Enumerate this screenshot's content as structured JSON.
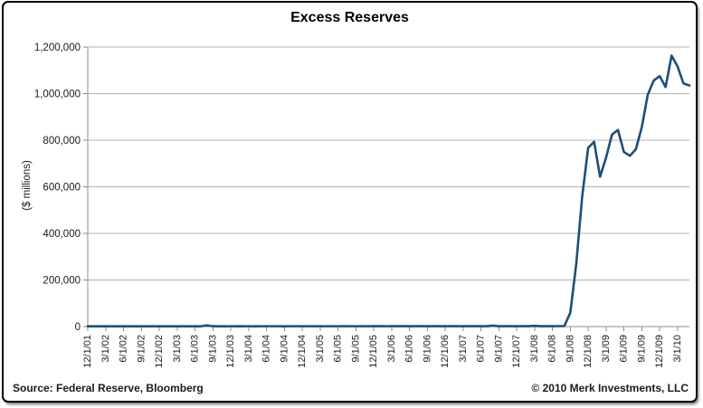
{
  "figure": {
    "title": "Excess Reserves"
  },
  "footer": {
    "source": "Source: Federal Reserve, Bloomberg",
    "copyright": "© 2010 Merk Investments, LLC"
  },
  "colors": {
    "line": "#1f4e79",
    "grid": "#b3b3b3",
    "axis": "#8c8c8c",
    "text": "#1a1a1a"
  },
  "chart_data": {
    "type": "line",
    "title": "Excess Reserves",
    "xlabel": "",
    "ylabel": "($ millions)",
    "ylim": [
      0,
      1200000
    ],
    "ytick_step": 200000,
    "y_tick_labels": [
      "0",
      "200,000",
      "400,000",
      "600,000",
      "800,000",
      "1,000,000",
      "1,200,000"
    ],
    "grid": true,
    "legend_position": "none",
    "x_tick_every_months": 3,
    "x_tick_labels": [
      "12/1/01",
      "3/1/02",
      "6/1/02",
      "9/1/02",
      "12/1/02",
      "3/1/03",
      "6/1/03",
      "9/1/03",
      "12/1/03",
      "3/1/04",
      "6/1/04",
      "9/1/04",
      "12/1/04",
      "3/1/05",
      "6/1/05",
      "9/1/05",
      "12/1/05",
      "3/1/06",
      "6/1/06",
      "9/1/06",
      "12/1/06",
      "3/1/07",
      "6/1/07",
      "9/1/07",
      "12/1/07",
      "3/1/08",
      "6/1/08",
      "9/1/08",
      "12/1/08",
      "3/1/09",
      "6/1/09",
      "9/1/09",
      "12/1/09",
      "3/1/10"
    ],
    "series": [
      {
        "name": "Excess Reserves",
        "x": [
          "12/1/01",
          "1/1/02",
          "2/1/02",
          "3/1/02",
          "4/1/02",
          "5/1/02",
          "6/1/02",
          "7/1/02",
          "8/1/02",
          "9/1/02",
          "10/1/02",
          "11/1/02",
          "12/1/02",
          "1/1/03",
          "2/1/03",
          "3/1/03",
          "4/1/03",
          "5/1/03",
          "6/1/03",
          "7/1/03",
          "8/1/03",
          "9/1/03",
          "10/1/03",
          "11/1/03",
          "12/1/03",
          "1/1/04",
          "2/1/04",
          "3/1/04",
          "4/1/04",
          "5/1/04",
          "6/1/04",
          "7/1/04",
          "8/1/04",
          "9/1/04",
          "10/1/04",
          "11/1/04",
          "12/1/04",
          "1/1/05",
          "2/1/05",
          "3/1/05",
          "4/1/05",
          "5/1/05",
          "6/1/05",
          "7/1/05",
          "8/1/05",
          "9/1/05",
          "10/1/05",
          "11/1/05",
          "12/1/05",
          "1/1/06",
          "2/1/06",
          "3/1/06",
          "4/1/06",
          "5/1/06",
          "6/1/06",
          "7/1/06",
          "8/1/06",
          "9/1/06",
          "10/1/06",
          "11/1/06",
          "12/1/06",
          "1/1/07",
          "2/1/07",
          "3/1/07",
          "4/1/07",
          "5/1/07",
          "6/1/07",
          "7/1/07",
          "8/1/07",
          "9/1/07",
          "10/1/07",
          "11/1/07",
          "12/1/07",
          "1/1/08",
          "2/1/08",
          "3/1/08",
          "4/1/08",
          "5/1/08",
          "6/1/08",
          "7/1/08",
          "8/1/08",
          "9/1/08",
          "10/1/08",
          "11/1/08",
          "12/1/08",
          "1/1/09",
          "2/1/09",
          "3/1/09",
          "4/1/09",
          "5/1/09",
          "6/1/09",
          "7/1/09",
          "8/1/09",
          "9/1/09",
          "10/1/09",
          "11/1/09",
          "12/1/09",
          "1/1/10",
          "2/1/10",
          "3/1/10",
          "4/1/10",
          "5/1/10"
        ],
        "values": [
          1322,
          1250,
          1310,
          1280,
          1330,
          1290,
          1350,
          1300,
          1340,
          1280,
          1320,
          1300,
          1350,
          1300,
          1320,
          1340,
          1300,
          1350,
          1320,
          1380,
          5000,
          1500,
          1400,
          1380,
          1420,
          1400,
          1380,
          1420,
          1400,
          1440,
          1420,
          1450,
          1430,
          1400,
          1440,
          1420,
          1460,
          1440,
          1420,
          1460,
          1440,
          1480,
          1460,
          1500,
          1480,
          1460,
          1500,
          1480,
          1520,
          1500,
          1480,
          1520,
          1500,
          1540,
          1520,
          1560,
          1540,
          1520,
          1560,
          1540,
          1580,
          1560,
          1540,
          1580,
          1560,
          1600,
          1580,
          1620,
          4000,
          1700,
          1650,
          1620,
          1660,
          1640,
          1620,
          3000,
          1700,
          1680,
          1720,
          1900,
          1988,
          59482,
          267902,
          559022,
          767316,
          793162,
          643468,
          724544,
          824389,
          844256,
          749839,
          733202,
          760749,
          855202,
          994666,
          1056124,
          1075226,
          1028071,
          1163226,
          1117381,
          1043635,
          1034965
        ]
      }
    ]
  }
}
